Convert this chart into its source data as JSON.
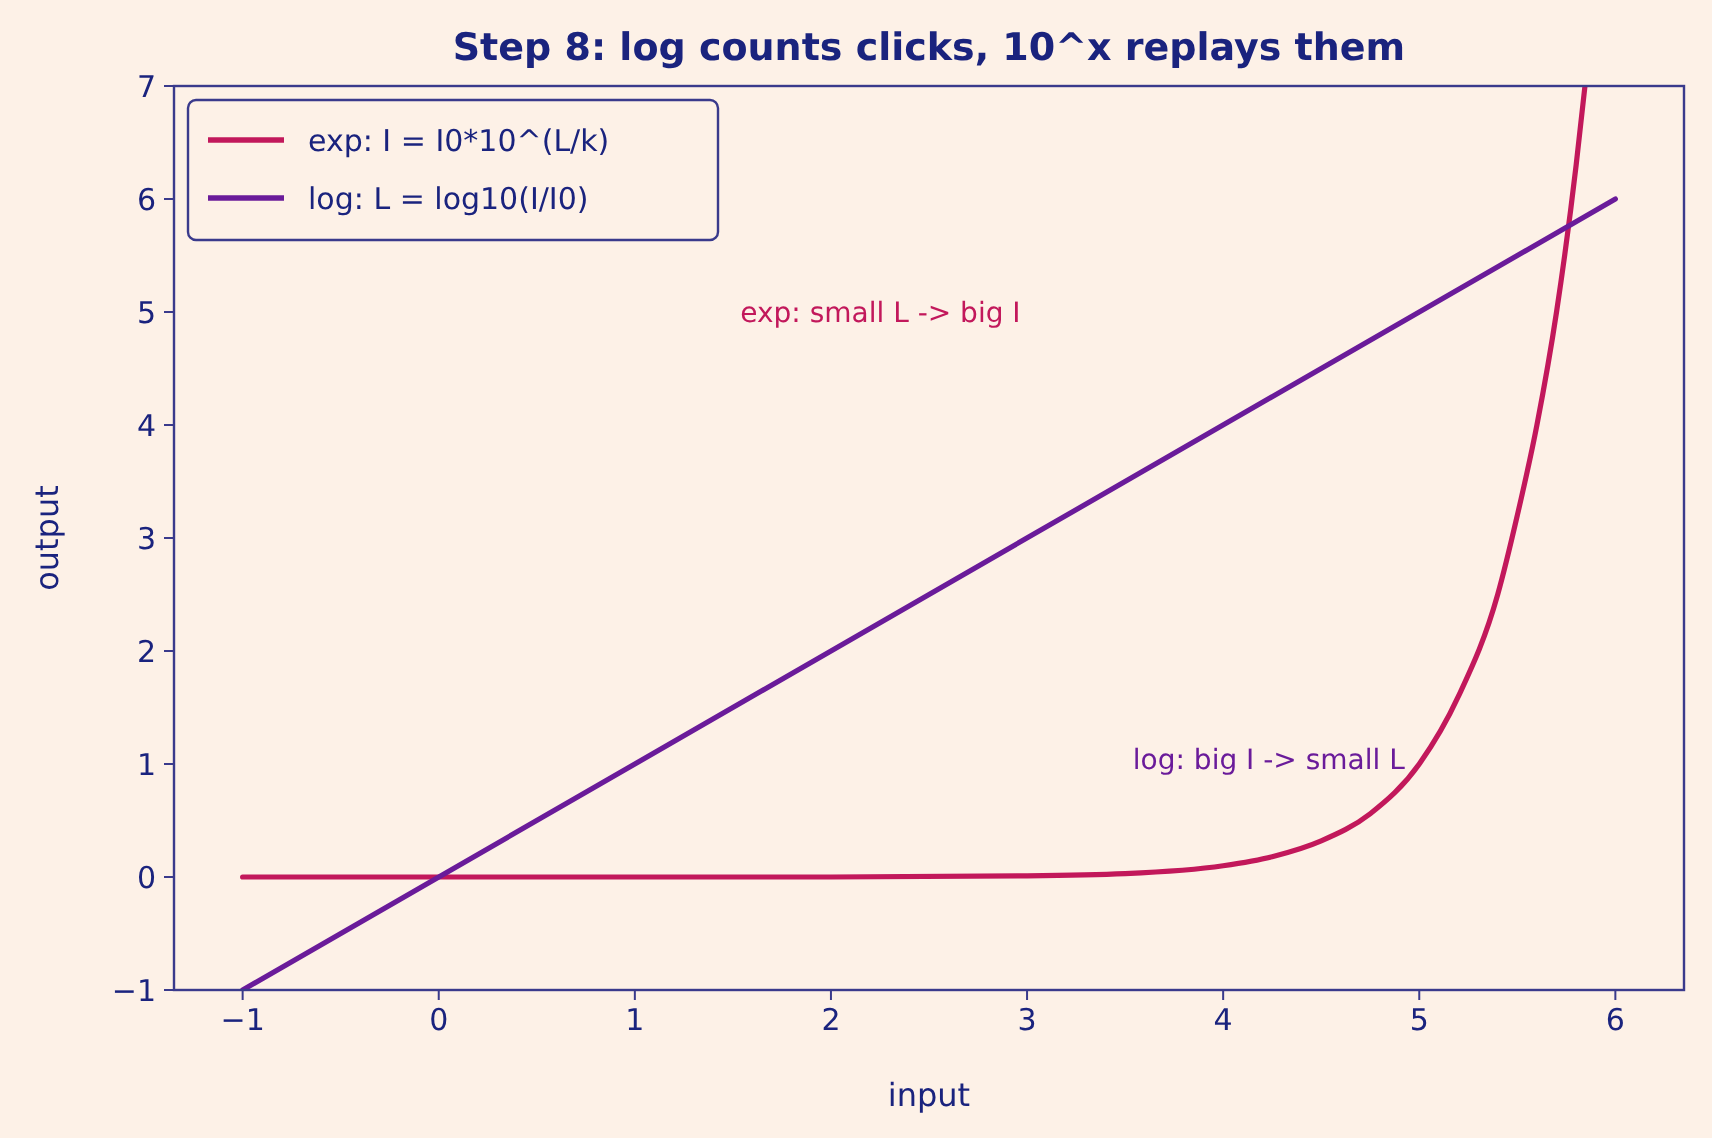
{
  "chart_data": {
    "type": "line",
    "title": "Step 8: log counts clicks, 10^x replays them",
    "xlabel": "input",
    "ylabel": "output",
    "xlim": [
      -1.35,
      6.35
    ],
    "ylim": [
      -1,
      7
    ],
    "xticks": [
      -1,
      0,
      1,
      2,
      3,
      4,
      5,
      6
    ],
    "yticks": [
      -1,
      0,
      1,
      2,
      3,
      4,
      5,
      6,
      7
    ],
    "grid": false,
    "legend": "top left",
    "line_style": "solid",
    "marker": "none",
    "series": [
      {
        "name": "exp: I = I0*10^(L/k)",
        "color": "#c2185b",
        "x": [
          -1,
          0,
          1,
          2,
          3,
          3.5,
          4,
          4.25,
          4.5,
          4.75,
          5,
          5.2,
          5.4,
          5.5,
          5.6,
          5.7,
          5.8,
          5.845
        ],
        "values": [
          0,
          0,
          0,
          0,
          0.01,
          0.03,
          0.1,
          0.18,
          0.32,
          0.56,
          1,
          1.6,
          2.5,
          3.2,
          4,
          5,
          6.3,
          7
        ]
      },
      {
        "name": "log: L = log10(I/I0)",
        "color": "#6a1b9a",
        "x": [
          -1,
          6
        ],
        "values": [
          -1,
          6
        ]
      }
    ],
    "annotations": [
      "exp: small L -> big I",
      "log: big I -> small L"
    ]
  }
}
